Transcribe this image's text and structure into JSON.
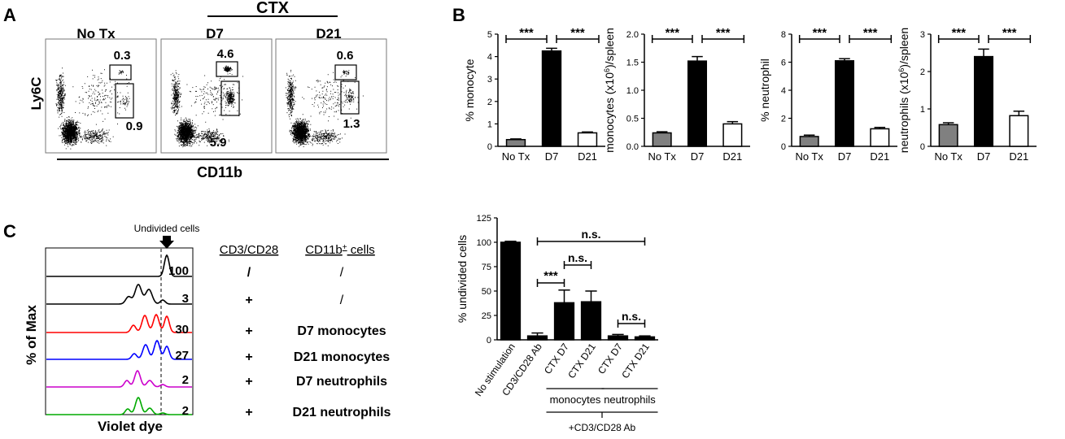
{
  "panels": {
    "A": {
      "letter": "A",
      "group_label": "CTX",
      "x_label": "CD11b",
      "y_label": "Ly6C",
      "plots": [
        {
          "title": "No Tx",
          "ly6c_hi": "0.3",
          "ly6c_lo": "0.9"
        },
        {
          "title": "D7",
          "ly6c_hi": "4.6",
          "ly6c_lo": "5.9"
        },
        {
          "title": "D21",
          "ly6c_hi": "0.6",
          "ly6c_lo": "1.3"
        }
      ]
    },
    "B": {
      "letter": "B"
    },
    "C": {
      "letter": "C",
      "arrow_label": "Undivided cells",
      "y_label": "% of Max",
      "x_label": "Violet dye",
      "col1_header": "CD3/CD28",
      "col2_header": "CD11b",
      "col2_header_sup": "+",
      "col2_header_suffix": " cells",
      "rows": [
        {
          "value": "100",
          "cd3": "/",
          "cells": "/",
          "color": "#000000"
        },
        {
          "value": "3",
          "cd3": "+",
          "cells": "/",
          "color": "#000000"
        },
        {
          "value": "30",
          "cd3": "+",
          "cells": "D7 monocytes",
          "color": "#ff0000"
        },
        {
          "value": "27",
          "cd3": "+",
          "cells": "D21 monocytes",
          "color": "#0000ff"
        },
        {
          "value": "2",
          "cd3": "+",
          "cells": "D7 neutrophils",
          "color": "#cc00cc"
        },
        {
          "value": "2",
          "cd3": "+",
          "cells": "D21 neutrophils",
          "color": "#00aa00"
        }
      ]
    }
  },
  "chart_data": [
    {
      "type": "bar",
      "panel": "B",
      "categories": [
        "No Tx",
        "D7",
        "D21"
      ],
      "values": [
        0.3,
        4.25,
        0.6
      ],
      "errors": [
        0.03,
        0.12,
        0.04
      ],
      "ylabel": "% monocyte",
      "ylim": [
        0,
        5
      ],
      "ticks": [
        "0",
        "1",
        "2",
        "3",
        "4",
        "5"
      ],
      "bar_colors": [
        "#808080",
        "#000000",
        "#ffffff"
      ],
      "significance": [
        "***",
        "***"
      ]
    },
    {
      "type": "bar",
      "panel": "B",
      "categories": [
        "No Tx",
        "D7",
        "D21"
      ],
      "values": [
        0.24,
        1.52,
        0.4
      ],
      "errors": [
        0.02,
        0.08,
        0.04
      ],
      "ylabel": "monocytes (x10",
      "ylabel_sup": "6",
      "ylabel_suffix": ")/spleen",
      "ylim": [
        0,
        2
      ],
      "ticks": [
        "0.0",
        "0.5",
        "1.0",
        "1.5",
        "2.0"
      ],
      "bar_colors": [
        "#808080",
        "#000000",
        "#ffffff"
      ],
      "significance": [
        "***",
        "***"
      ]
    },
    {
      "type": "bar",
      "panel": "B",
      "categories": [
        "No Tx",
        "D7",
        "D21"
      ],
      "values": [
        0.7,
        6.1,
        1.25
      ],
      "errors": [
        0.1,
        0.15,
        0.1
      ],
      "ylabel": "% neutrophil",
      "ylim": [
        0,
        8
      ],
      "ticks": [
        "0",
        "2",
        "4",
        "6",
        "8"
      ],
      "bar_colors": [
        "#808080",
        "#000000",
        "#ffffff"
      ],
      "significance": [
        "***",
        "***"
      ]
    },
    {
      "type": "bar",
      "panel": "B",
      "categories": [
        "No Tx",
        "D7",
        "D21"
      ],
      "values": [
        0.58,
        2.4,
        0.82
      ],
      "errors": [
        0.05,
        0.2,
        0.12
      ],
      "ylabel": "neutrophils (x10",
      "ylabel_sup": "6",
      "ylabel_suffix": ")/spleen",
      "ylim": [
        0,
        3
      ],
      "ticks": [
        "0",
        "1",
        "2",
        "3"
      ],
      "bar_colors": [
        "#808080",
        "#000000",
        "#ffffff"
      ],
      "significance": [
        "***",
        "***"
      ]
    },
    {
      "type": "bar",
      "panel": "C",
      "categories": [
        "No stimulation",
        "CD3/CD28 Ab",
        "CTX D7",
        "CTX D21",
        "CTX D7",
        "CTX D21"
      ],
      "values": [
        100,
        4,
        38,
        39,
        4,
        3
      ],
      "errors": [
        1,
        3,
        13,
        11,
        1.5,
        1
      ],
      "ylabel": "% undivided cells",
      "ylim": [
        0,
        125
      ],
      "ticks": [
        "0",
        "25",
        "50",
        "75",
        "100",
        "125"
      ],
      "bar_colors": [
        "#000000",
        "#000000",
        "#000000",
        "#000000",
        "#000000",
        "#000000"
      ],
      "group_labels": [
        "monocytes",
        "neutrophils"
      ],
      "bracket_label": "+CD3/CD28 Ab",
      "significance": [
        {
          "from": 1,
          "to": 5,
          "label": "n.s."
        },
        {
          "from": 1,
          "to": 2,
          "label": "***"
        },
        {
          "from": 2,
          "to": 3,
          "label": "n.s."
        },
        {
          "from": 4,
          "to": 5,
          "label": "n.s."
        }
      ]
    }
  ]
}
